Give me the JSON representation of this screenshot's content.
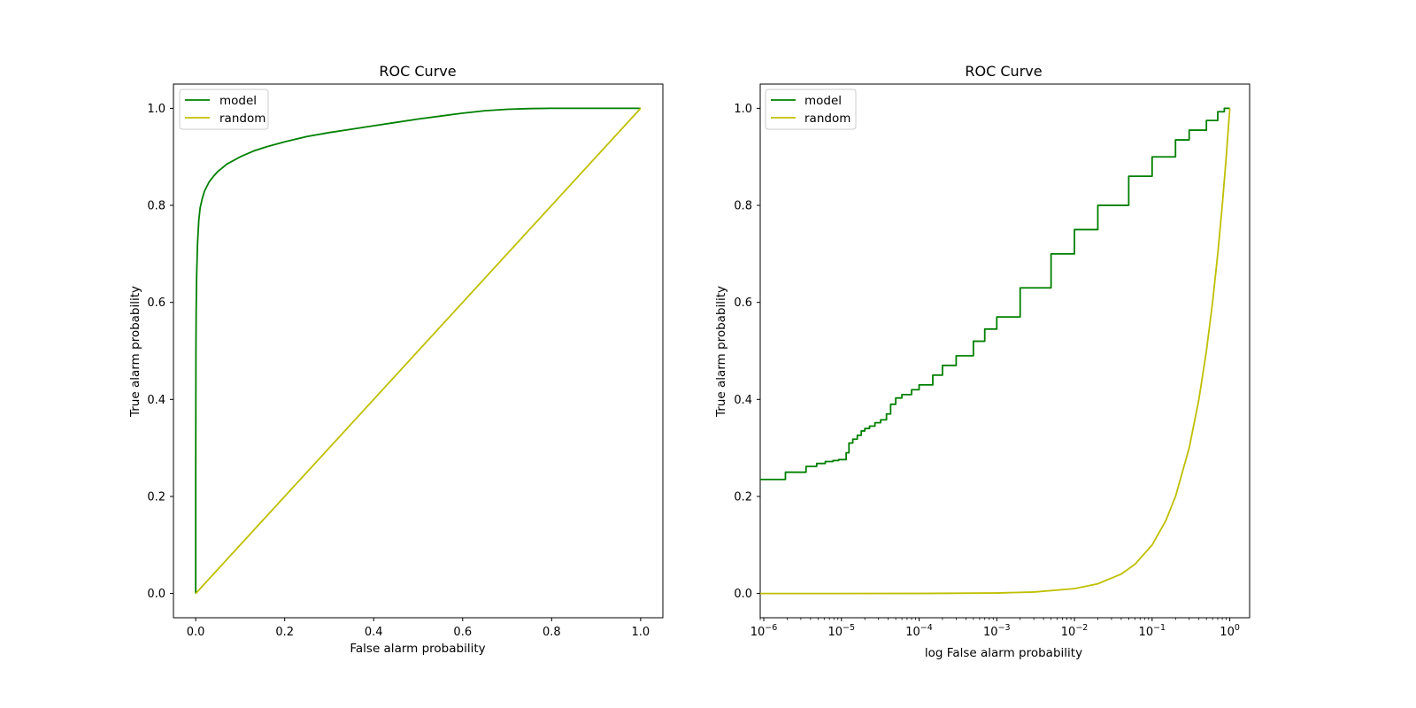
{
  "chart_data": [
    {
      "type": "line",
      "title": "ROC Curve",
      "xlabel": "False alarm probability",
      "ylabel": "True alarm probability",
      "xscale": "linear",
      "xlim": [
        -0.05,
        1.05
      ],
      "ylim": [
        -0.05,
        1.05
      ],
      "xticks": [
        0.0,
        0.2,
        0.4,
        0.6,
        0.8,
        1.0
      ],
      "xtick_labels": [
        "0.0",
        "0.2",
        "0.4",
        "0.6",
        "0.8",
        "1.0"
      ],
      "yticks": [
        0.0,
        0.2,
        0.4,
        0.6,
        0.8,
        1.0
      ],
      "ytick_labels": [
        "0.0",
        "0.2",
        "0.4",
        "0.6",
        "0.8",
        "1.0"
      ],
      "grid": false,
      "legend": "top-left",
      "series": [
        {
          "name": "model",
          "color": "#008000",
          "x": [
            0,
            0,
            0.0005,
            0.001,
            0.002,
            0.004,
            0.007,
            0.01,
            0.015,
            0.02,
            0.03,
            0.04,
            0.05,
            0.07,
            0.1,
            0.13,
            0.16,
            0.2,
            0.25,
            0.3,
            0.35,
            0.4,
            0.45,
            0.5,
            0.55,
            0.6,
            0.65,
            0.7,
            0.75,
            0.8,
            0.85,
            0.9,
            0.95,
            1.0
          ],
          "y": [
            0,
            0.24,
            0.5,
            0.58,
            0.65,
            0.72,
            0.77,
            0.795,
            0.815,
            0.83,
            0.848,
            0.86,
            0.87,
            0.885,
            0.9,
            0.912,
            0.921,
            0.931,
            0.942,
            0.95,
            0.957,
            0.964,
            0.971,
            0.978,
            0.984,
            0.99,
            0.995,
            0.998,
            0.9995,
            1.0,
            1.0,
            1.0,
            1.0,
            1.0
          ]
        },
        {
          "name": "random",
          "color": "#bfbf00",
          "x": [
            0,
            1
          ],
          "y": [
            0,
            1
          ]
        }
      ]
    },
    {
      "type": "line",
      "title": "ROC Curve",
      "xlabel": "log False alarm probability",
      "ylabel": "True alarm probability",
      "xscale": "log",
      "xlim": [
        9e-07,
        1.8
      ],
      "ylim": [
        -0.05,
        1.05
      ],
      "xticks": [
        1e-06,
        1e-05,
        0.0001,
        0.001,
        0.01,
        0.1,
        1
      ],
      "xtick_labels": [
        {
          "base": "10",
          "exp": "−6"
        },
        {
          "base": "10",
          "exp": "−5"
        },
        {
          "base": "10",
          "exp": "−4"
        },
        {
          "base": "10",
          "exp": "−3"
        },
        {
          "base": "10",
          "exp": "−2"
        },
        {
          "base": "10",
          "exp": "−1"
        },
        {
          "base": "10",
          "exp": "0"
        }
      ],
      "yticks": [
        0.0,
        0.2,
        0.4,
        0.6,
        0.8,
        1.0
      ],
      "ytick_labels": [
        "0.0",
        "0.2",
        "0.4",
        "0.6",
        "0.8",
        "1.0"
      ],
      "grid": false,
      "legend": "top-left",
      "series": [
        {
          "name": "model",
          "color": "#008000",
          "step": true,
          "x": [
            9e-07,
            1.9e-06,
            3.5e-06,
            4.8e-06,
            6.2e-06,
            7.8e-06,
            9.2e-06,
            1.15e-05,
            1.25e-05,
            1.4e-05,
            1.6e-05,
            1.8e-05,
            2e-05,
            2.3e-05,
            2.7e-05,
            3.2e-05,
            3.8e-05,
            4.3e-05,
            5e-05,
            6e-05,
            8e-05,
            0.0001,
            0.00015,
            0.0002,
            0.0003,
            0.0005,
            0.0007,
            0.001,
            0.002,
            0.005,
            0.01,
            0.02,
            0.05,
            0.1,
            0.2,
            0.3,
            0.5,
            0.7,
            0.85,
            1.0
          ],
          "y": [
            0.235,
            0.25,
            0.262,
            0.268,
            0.272,
            0.274,
            0.276,
            0.29,
            0.31,
            0.318,
            0.326,
            0.335,
            0.34,
            0.345,
            0.352,
            0.358,
            0.37,
            0.39,
            0.403,
            0.41,
            0.42,
            0.43,
            0.45,
            0.47,
            0.49,
            0.52,
            0.545,
            0.57,
            0.63,
            0.7,
            0.75,
            0.8,
            0.86,
            0.9,
            0.935,
            0.955,
            0.975,
            0.993,
            1.0,
            1.0
          ]
        },
        {
          "name": "random",
          "color": "#bfbf00",
          "x": [
            9e-07,
            1e-05,
            0.0001,
            0.001,
            0.003,
            0.01,
            0.02,
            0.04,
            0.06,
            0.1,
            0.15,
            0.2,
            0.3,
            0.4,
            0.5,
            0.6,
            0.7,
            0.8,
            0.9,
            1.0
          ],
          "y": [
            1e-06,
            1e-05,
            0.0001,
            0.001,
            0.003,
            0.01,
            0.02,
            0.04,
            0.06,
            0.1,
            0.15,
            0.2,
            0.3,
            0.4,
            0.5,
            0.6,
            0.7,
            0.8,
            0.9,
            1.0
          ]
        }
      ]
    }
  ]
}
